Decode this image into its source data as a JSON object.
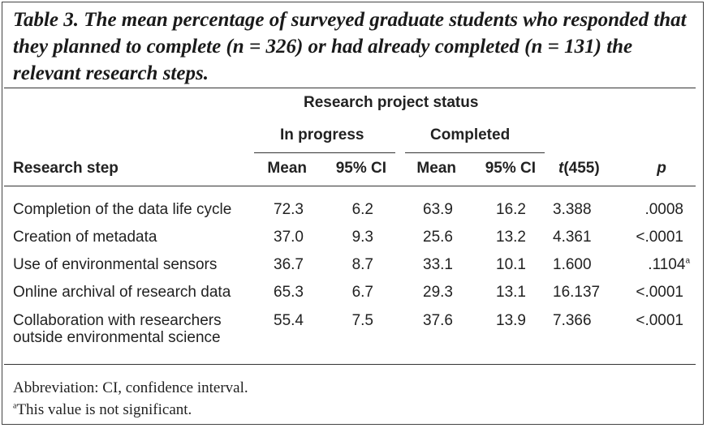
{
  "caption": "Table 3. The mean percentage of surveyed graduate students who responded that they planned to complete (n = 326) or had already completed (n = 131) the relevant research steps.",
  "header": {
    "group": "Research project status",
    "in_progress": "In progress",
    "completed": "Completed",
    "step": "Research step",
    "mean1": "Mean",
    "ci1": "95% CI",
    "mean2": "Mean",
    "ci2": "95% CI",
    "t": "t(455)",
    "p": "p"
  },
  "rows": [
    {
      "step": "Completion of the data life cycle",
      "step2": "",
      "mean1": "72.3",
      "ci1": "6.2",
      "mean2": "63.9",
      "ci2": "16.2",
      "t": "3.388",
      "p": ".0008",
      "sup": ""
    },
    {
      "step": "Creation of metadata",
      "step2": "",
      "mean1": "37.0",
      "ci1": "9.3",
      "mean2": "25.6",
      "ci2": "13.2",
      "t": "4.361",
      "p": "<.0001",
      "sup": ""
    },
    {
      "step": "Use of environmental sensors",
      "step2": "",
      "mean1": "36.7",
      "ci1": "8.7",
      "mean2": "33.1",
      "ci2": "10.1",
      "t": "1.600",
      "p": ".1104",
      "sup": "a"
    },
    {
      "step": "Online archival of research data",
      "step2": "",
      "mean1": "65.3",
      "ci1": "6.7",
      "mean2": "29.3",
      "ci2": "13.1",
      "t": "16.137",
      "p": "<.0001",
      "sup": ""
    },
    {
      "step": "Collaboration with researchers",
      "step2": "outside environmental science",
      "mean1": "55.4",
      "ci1": "7.5",
      "mean2": "37.6",
      "ci2": "13.9",
      "t": "7.366",
      "p": "<.0001",
      "sup": ""
    }
  ],
  "footnotes": {
    "abbrev": "Abbreviation: CI, confidence interval.",
    "sig_mark": "a",
    "sig_text": "This value is not significant."
  }
}
